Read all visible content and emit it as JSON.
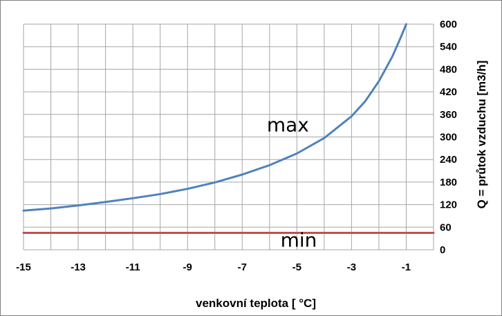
{
  "chart_data": {
    "type": "line",
    "xlabel": "venkovní teplota [ °C]",
    "ylabel": "Q = průtok vzduchu [m3/h]",
    "xlim": [
      -15,
      0
    ],
    "ylim": [
      0,
      600
    ],
    "x_ticks": [
      -15,
      -13,
      -11,
      -9,
      -7,
      -5,
      -3,
      -1
    ],
    "y_ticks": [
      0,
      60,
      120,
      180,
      240,
      300,
      360,
      420,
      480,
      540,
      600
    ],
    "grid": true,
    "y_axis_position": "right",
    "series": [
      {
        "color": "#4f81bd",
        "x": [
          -15,
          -14,
          -13,
          -12,
          -11,
          -10,
          -9,
          -8,
          -7,
          -6,
          -5,
          -4,
          -3,
          -2.5,
          -2,
          -1.5,
          -1.2,
          -1
        ],
        "y": [
          104,
          110,
          118,
          127,
          137,
          148,
          162,
          179,
          200,
          225,
          256,
          297,
          355,
          395,
          448,
          515,
          565,
          600
        ]
      },
      {
        "color": "#c0504d",
        "x": [
          -15,
          0
        ],
        "y": [
          45,
          45
        ]
      }
    ],
    "annotations": [
      {
        "text": "max",
        "x": -6.1,
        "y": 315
      },
      {
        "text": "min",
        "x": -5.6,
        "y": 8
      }
    ]
  }
}
